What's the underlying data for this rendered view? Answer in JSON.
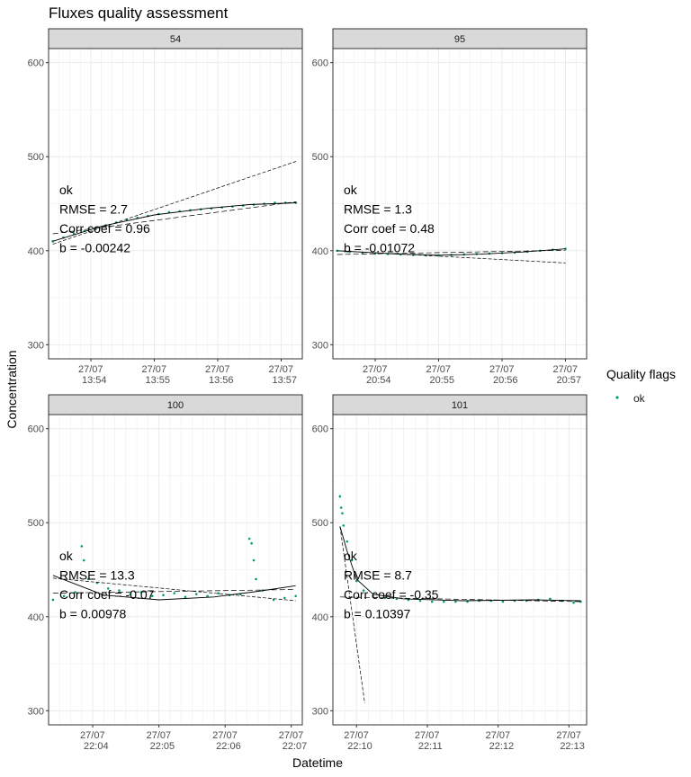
{
  "chart_data": {
    "type": "scatter",
    "title": "Fluxes quality assessment",
    "xlabel": "Datetime",
    "ylabel": "Concentration",
    "ylim": [
      285,
      615
    ],
    "y_ticks": [
      300,
      400,
      500,
      600
    ],
    "grid": true,
    "legend": {
      "title": "Quality flags",
      "position": "right",
      "entries": [
        {
          "label": "ok",
          "color": "#009E73"
        }
      ]
    },
    "colors": {
      "points": "#009E73",
      "strip_bg": "#d9d9d9",
      "grid": "#ebebeb",
      "fit_line": "#000000"
    },
    "panels": [
      {
        "label": "54",
        "xlim": [
          "13:53:20",
          "13:57:20"
        ],
        "x_ticks": [
          {
            "line1": "27/07",
            "line2": "13:54",
            "value": "13:54:00"
          },
          {
            "line1": "27/07",
            "line2": "13:55",
            "value": "13:55:00"
          },
          {
            "line1": "27/07",
            "line2": "13:56",
            "value": "13:56:00"
          },
          {
            "line1": "27/07",
            "line2": "13:57",
            "value": "13:57:00"
          }
        ],
        "annotation": [
          "ok",
          "RMSE = 2.7",
          "Corr coef = 0.96",
          "b = -0.00242"
        ],
        "points": [
          [
            "13:53:24",
            410
          ],
          [
            "13:53:34",
            414
          ],
          [
            "13:53:44",
            418
          ],
          [
            "13:53:54",
            421
          ],
          [
            "13:54:04",
            424
          ],
          [
            "13:54:14",
            427
          ],
          [
            "13:54:24",
            430
          ],
          [
            "13:54:34",
            433
          ],
          [
            "13:54:44",
            435
          ],
          [
            "13:54:54",
            437
          ],
          [
            "13:55:04",
            439
          ],
          [
            "13:55:14",
            441
          ],
          [
            "13:55:24",
            442
          ],
          [
            "13:55:34",
            443
          ],
          [
            "13:55:44",
            444
          ],
          [
            "13:55:54",
            445
          ],
          [
            "13:56:04",
            446
          ],
          [
            "13:56:14",
            447
          ],
          [
            "13:56:24",
            448
          ],
          [
            "13:56:34",
            449
          ],
          [
            "13:56:44",
            450
          ],
          [
            "13:56:54",
            451
          ],
          [
            "13:57:04",
            451
          ],
          [
            "13:57:14",
            451
          ]
        ],
        "fit_curve": [
          [
            "13:53:24",
            410
          ],
          [
            "13:54:10",
            426
          ],
          [
            "13:55:00",
            438
          ],
          [
            "13:55:50",
            445
          ],
          [
            "13:56:30",
            449
          ],
          [
            "13:57:14",
            451
          ]
        ],
        "tangent_line": [
          [
            "13:53:24",
            407
          ],
          [
            "13:57:14",
            495
          ]
        ],
        "linear_line": [
          [
            "13:53:24",
            418
          ],
          [
            "13:57:14",
            452
          ]
        ]
      },
      {
        "label": "95",
        "xlim": [
          "20:53:20",
          "20:57:20"
        ],
        "x_ticks": [
          {
            "line1": "27/07",
            "line2": "20:54",
            "value": "20:54:00"
          },
          {
            "line1": "27/07",
            "line2": "20:55",
            "value": "20:55:00"
          },
          {
            "line1": "27/07",
            "line2": "20:56",
            "value": "20:56:00"
          },
          {
            "line1": "27/07",
            "line2": "20:57",
            "value": "20:57:00"
          }
        ],
        "annotation": [
          "ok",
          "RMSE = 1.3",
          "Corr coef = 0.48",
          "b = -0.01072"
        ],
        "points": [
          [
            "20:53:24",
            400
          ],
          [
            "20:53:36",
            399
          ],
          [
            "20:53:48",
            398
          ],
          [
            "20:54:00",
            397
          ],
          [
            "20:54:12",
            396.5
          ],
          [
            "20:54:24",
            396
          ],
          [
            "20:54:36",
            395.5
          ],
          [
            "20:54:48",
            395
          ],
          [
            "20:55:00",
            395
          ],
          [
            "20:55:12",
            395.5
          ],
          [
            "20:55:24",
            396
          ],
          [
            "20:55:36",
            396.5
          ],
          [
            "20:55:48",
            397
          ],
          [
            "20:56:00",
            397.5
          ],
          [
            "20:56:12",
            398
          ],
          [
            "20:56:24",
            399
          ],
          [
            "20:56:36",
            400
          ],
          [
            "20:56:48",
            401
          ],
          [
            "20:57:00",
            402
          ]
        ],
        "fit_curve": [
          [
            "20:53:24",
            400
          ],
          [
            "20:54:20",
            396.5
          ],
          [
            "20:55:00",
            395.2
          ],
          [
            "20:55:40",
            396.3
          ],
          [
            "20:56:20",
            398.6
          ],
          [
            "20:57:00",
            402
          ]
        ],
        "tangent_line": [
          [
            "20:53:24",
            400
          ],
          [
            "20:57:00",
            387
          ]
        ],
        "linear_line": [
          [
            "20:53:24",
            396
          ],
          [
            "20:57:00",
            400.5
          ]
        ]
      },
      {
        "label": "100",
        "xlim": [
          "22:03:20",
          "22:07:10"
        ],
        "x_ticks": [
          {
            "line1": "27/07",
            "line2": "22:04",
            "value": "22:04:00"
          },
          {
            "line1": "27/07",
            "line2": "22:05",
            "value": "22:05:00"
          },
          {
            "line1": "27/07",
            "line2": "22:06",
            "value": "22:06:00"
          },
          {
            "line1": "27/07",
            "line2": "22:07",
            "value": "22:07:00"
          }
        ],
        "annotation": [
          "ok",
          "RMSE = 13.3",
          "Corr coef = -0.07",
          "b = 0.00978"
        ],
        "points": [
          [
            "22:03:24",
            418
          ],
          [
            "22:03:34",
            422
          ],
          [
            "22:03:44",
            426
          ],
          [
            "22:03:50",
            475
          ],
          [
            "22:03:52",
            460
          ],
          [
            "22:03:56",
            440
          ],
          [
            "22:04:04",
            436
          ],
          [
            "22:04:14",
            430
          ],
          [
            "22:04:24",
            428
          ],
          [
            "22:04:34",
            424
          ],
          [
            "22:04:44",
            426
          ],
          [
            "22:04:54",
            422
          ],
          [
            "22:05:04",
            423
          ],
          [
            "22:05:14",
            425
          ],
          [
            "22:05:24",
            421
          ],
          [
            "22:05:34",
            424
          ],
          [
            "22:05:44",
            422
          ],
          [
            "22:05:54",
            425
          ],
          [
            "22:06:04",
            423
          ],
          [
            "22:06:14",
            424
          ],
          [
            "22:06:22",
            483
          ],
          [
            "22:06:24",
            478
          ],
          [
            "22:06:26",
            460
          ],
          [
            "22:06:28",
            440
          ],
          [
            "22:06:34",
            428
          ],
          [
            "22:06:44",
            418
          ],
          [
            "22:06:54",
            420
          ],
          [
            "22:07:04",
            422
          ]
        ],
        "fit_curve": [
          [
            "22:03:24",
            444
          ],
          [
            "22:04:10",
            423
          ],
          [
            "22:05:00",
            418
          ],
          [
            "22:05:50",
            421
          ],
          [
            "22:06:30",
            427
          ],
          [
            "22:07:04",
            433
          ]
        ],
        "tangent_line": [
          [
            "22:03:24",
            441
          ],
          [
            "22:07:04",
            417
          ]
        ],
        "linear_line": [
          [
            "22:03:24",
            425
          ],
          [
            "22:07:04",
            429
          ]
        ]
      },
      {
        "label": "101",
        "xlim": [
          "22:09:40",
          "22:13:15"
        ],
        "x_ticks": [
          {
            "line1": "27/07",
            "line2": "22:10",
            "value": "22:10:00"
          },
          {
            "line1": "27/07",
            "line2": "22:11",
            "value": "22:11:00"
          },
          {
            "line1": "27/07",
            "line2": "22:12",
            "value": "22:12:00"
          },
          {
            "line1": "27/07",
            "line2": "22:13",
            "value": "22:13:00"
          }
        ],
        "annotation": [
          "ok",
          "RMSE = 8.7",
          "Corr coef = -0.35",
          "b = 0.10397"
        ],
        "points": [
          [
            "22:09:46",
            528
          ],
          [
            "22:09:47",
            516
          ],
          [
            "22:09:48",
            510
          ],
          [
            "22:09:49",
            497
          ],
          [
            "22:09:52",
            480
          ],
          [
            "22:09:56",
            460
          ],
          [
            "22:10:00",
            438
          ],
          [
            "22:10:06",
            428
          ],
          [
            "22:10:14",
            422
          ],
          [
            "22:10:24",
            420
          ],
          [
            "22:10:34",
            419
          ],
          [
            "22:10:44",
            418
          ],
          [
            "22:10:54",
            417
          ],
          [
            "22:11:04",
            416
          ],
          [
            "22:11:14",
            416
          ],
          [
            "22:11:24",
            416
          ],
          [
            "22:11:34",
            416
          ],
          [
            "22:11:44",
            417
          ],
          [
            "22:11:54",
            417
          ],
          [
            "22:12:04",
            416
          ],
          [
            "22:12:14",
            417
          ],
          [
            "22:12:24",
            417
          ],
          [
            "22:12:34",
            418
          ],
          [
            "22:12:44",
            419
          ],
          [
            "22:12:54",
            417
          ],
          [
            "22:13:04",
            415
          ],
          [
            "22:13:10",
            416
          ]
        ],
        "fit_curve": [
          [
            "22:09:46",
            496
          ],
          [
            "22:09:52",
            470
          ],
          [
            "22:10:00",
            440
          ],
          [
            "22:10:14",
            424
          ],
          [
            "22:10:40",
            419
          ],
          [
            "22:11:30",
            417
          ],
          [
            "22:12:30",
            418
          ],
          [
            "22:13:10",
            417
          ]
        ],
        "tangent_line": [
          [
            "22:09:46",
            496
          ],
          [
            "22:10:07",
            308
          ]
        ],
        "linear_line": [
          [
            "22:09:46",
            421
          ],
          [
            "22:13:10",
            416
          ]
        ]
      }
    ]
  }
}
